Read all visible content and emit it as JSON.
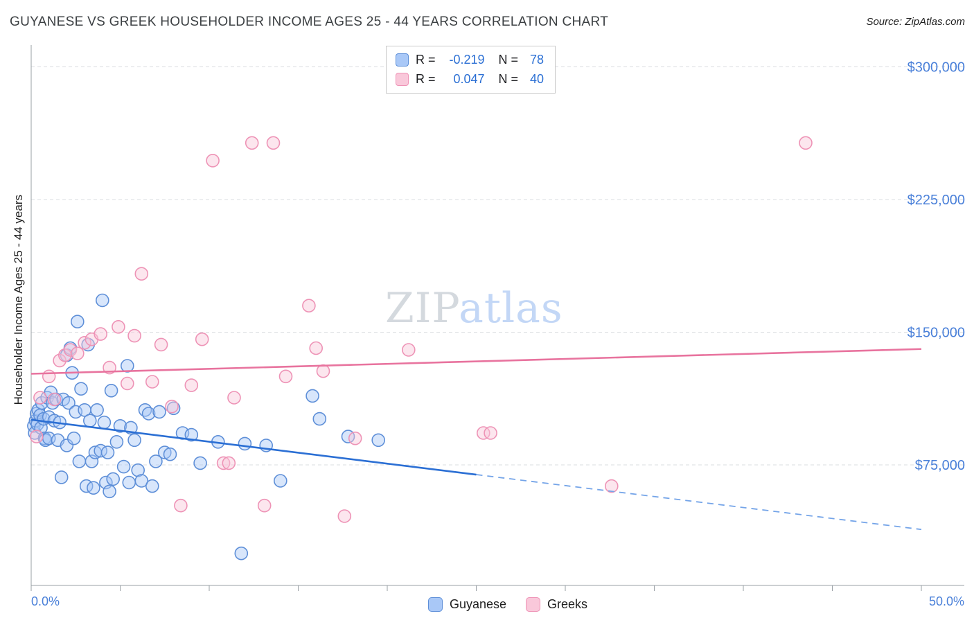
{
  "header": {
    "title": "GUYANESE VS GREEK HOUSEHOLDER INCOME AGES 25 - 44 YEARS CORRELATION CHART",
    "source": "Source: ZipAtlas.com"
  },
  "watermark": {
    "part1": "ZIP",
    "part2": "atlas"
  },
  "stats_legend": {
    "rows": [
      {
        "series": "Guyanese",
        "r_label": "R =",
        "r": "-0.219",
        "n_label": "N =",
        "n": "78"
      },
      {
        "series": "Greeks",
        "r_label": "R =",
        "r": "0.047",
        "n_label": "N =",
        "n": "40"
      }
    ]
  },
  "bottom_legend": {
    "items": [
      {
        "label": "Guyanese"
      },
      {
        "label": "Greeks"
      }
    ]
  },
  "chart_data": {
    "type": "scatter",
    "title": "GUYANESE VS GREEK HOUSEHOLDER INCOME AGES 25 - 44 YEARS CORRELATION CHART",
    "ylabel": "Householder Income Ages 25 - 44 years",
    "x_axis": {
      "min": 0,
      "max": 50,
      "min_label": "0.0%",
      "max_label": "50.0%",
      "tick_step_pct": 5,
      "unit": "percent"
    },
    "y_axis": {
      "unit": "USD",
      "label_color": "#4a80d9",
      "gridlines": [
        {
          "value": 300000,
          "label": "$300,000"
        },
        {
          "value": 225000,
          "label": "$225,000"
        },
        {
          "value": 150000,
          "label": "$150,000"
        },
        {
          "value": 75000,
          "label": "$75,000"
        }
      ]
    },
    "series": [
      {
        "id": "guyanese",
        "name": "Guyanese",
        "R": -0.219,
        "N": 78,
        "fill": "#a9c8f7",
        "stroke": "#5e8fd8",
        "line": "#2b6fd4",
        "line_dash": "#74a4e8",
        "trend": {
          "solid": [
            [
              0,
              100500
            ],
            [
              25,
              69500
            ]
          ],
          "dashed": [
            [
              25,
              69500
            ],
            [
              50,
              38500
            ]
          ]
        },
        "points": [
          [
            0.15,
            97000
          ],
          [
            0.2,
            93000
          ],
          [
            0.25,
            100000
          ],
          [
            0.3,
            104000
          ],
          [
            0.35,
            98000
          ],
          [
            0.4,
            106000
          ],
          [
            0.5,
            103000
          ],
          [
            0.55,
            96000
          ],
          [
            0.6,
            110000
          ],
          [
            0.7,
            101000
          ],
          [
            0.75,
            90000
          ],
          [
            0.8,
            89000
          ],
          [
            0.9,
            113000
          ],
          [
            1.0,
            102000
          ],
          [
            1.0,
            90000
          ],
          [
            1.1,
            116000
          ],
          [
            1.2,
            110000
          ],
          [
            1.3,
            100000
          ],
          [
            1.4,
            112000
          ],
          [
            1.5,
            89000
          ],
          [
            1.6,
            99000
          ],
          [
            1.7,
            68000
          ],
          [
            1.8,
            112000
          ],
          [
            2.0,
            86000
          ],
          [
            2.0,
            137000
          ],
          [
            2.1,
            110000
          ],
          [
            2.2,
            141000
          ],
          [
            2.3,
            127000
          ],
          [
            2.4,
            90000
          ],
          [
            2.5,
            105000
          ],
          [
            2.6,
            156000
          ],
          [
            2.7,
            77000
          ],
          [
            2.8,
            118000
          ],
          [
            3.0,
            106000
          ],
          [
            3.1,
            63000
          ],
          [
            3.2,
            143000
          ],
          [
            3.3,
            100000
          ],
          [
            3.4,
            77000
          ],
          [
            3.5,
            62000
          ],
          [
            3.6,
            82000
          ],
          [
            3.7,
            106000
          ],
          [
            3.9,
            83000
          ],
          [
            4.0,
            168000
          ],
          [
            4.1,
            99000
          ],
          [
            4.2,
            65000
          ],
          [
            4.3,
            82000
          ],
          [
            4.4,
            60000
          ],
          [
            4.5,
            117000
          ],
          [
            4.6,
            67000
          ],
          [
            4.8,
            88000
          ],
          [
            5.0,
            97000
          ],
          [
            5.2,
            74000
          ],
          [
            5.4,
            131000
          ],
          [
            5.5,
            65000
          ],
          [
            5.6,
            96000
          ],
          [
            5.8,
            89000
          ],
          [
            6.0,
            72000
          ],
          [
            6.2,
            66000
          ],
          [
            6.4,
            106000
          ],
          [
            6.6,
            104000
          ],
          [
            6.8,
            63000
          ],
          [
            7.0,
            77000
          ],
          [
            7.2,
            105000
          ],
          [
            7.5,
            82000
          ],
          [
            7.8,
            81000
          ],
          [
            8.0,
            107000
          ],
          [
            8.5,
            93000
          ],
          [
            9.0,
            92000
          ],
          [
            9.5,
            76000
          ],
          [
            10.5,
            88000
          ],
          [
            11.8,
            25000
          ],
          [
            12.0,
            87000
          ],
          [
            13.2,
            86000
          ],
          [
            14.0,
            66000
          ],
          [
            15.8,
            114000
          ],
          [
            16.2,
            101000
          ],
          [
            17.8,
            91000
          ],
          [
            19.5,
            89000
          ]
        ]
      },
      {
        "id": "greeks",
        "name": "Greeks",
        "R": 0.047,
        "N": 40,
        "fill": "#f9c8da",
        "stroke": "#ee93b6",
        "line": "#e8739e",
        "trend": {
          "solid": [
            [
              0,
              126500
            ],
            [
              50,
              140500
            ]
          ]
        },
        "points": [
          [
            0.3,
            91000
          ],
          [
            0.5,
            113000
          ],
          [
            1.0,
            125000
          ],
          [
            1.3,
            112000
          ],
          [
            1.6,
            134000
          ],
          [
            1.9,
            137000
          ],
          [
            2.2,
            140000
          ],
          [
            2.6,
            138000
          ],
          [
            3.0,
            144000
          ],
          [
            3.4,
            146000
          ],
          [
            3.9,
            149000
          ],
          [
            4.4,
            130000
          ],
          [
            4.9,
            153000
          ],
          [
            5.4,
            121000
          ],
          [
            5.8,
            148000
          ],
          [
            6.2,
            183000
          ],
          [
            6.8,
            122000
          ],
          [
            7.3,
            143000
          ],
          [
            7.9,
            108000
          ],
          [
            8.4,
            52000
          ],
          [
            9.0,
            120000
          ],
          [
            9.6,
            146000
          ],
          [
            10.2,
            247000
          ],
          [
            10.8,
            76000
          ],
          [
            11.1,
            76000
          ],
          [
            11.4,
            113000
          ],
          [
            12.4,
            257000
          ],
          [
            13.6,
            257000
          ],
          [
            13.1,
            52000
          ],
          [
            14.3,
            125000
          ],
          [
            15.6,
            165000
          ],
          [
            16.0,
            141000
          ],
          [
            16.4,
            128000
          ],
          [
            17.6,
            46000
          ],
          [
            18.2,
            90000
          ],
          [
            21.2,
            140000
          ],
          [
            25.4,
            93000
          ],
          [
            25.8,
            93000
          ],
          [
            32.6,
            63000
          ],
          [
            43.5,
            257000
          ]
        ]
      }
    ]
  }
}
